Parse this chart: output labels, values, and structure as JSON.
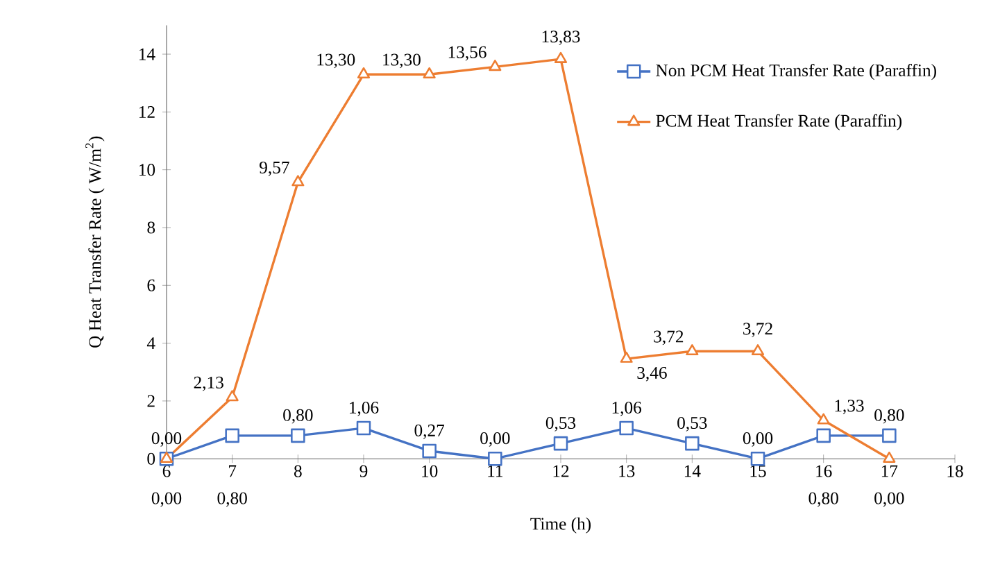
{
  "chart_data": {
    "type": "line",
    "xlabel": "Time (h)",
    "ylabel": "Q Heat Transfer Rate ( W/m$^{2}$)",
    "x": [
      6,
      7,
      8,
      9,
      10,
      11,
      12,
      13,
      14,
      15,
      16,
      17
    ],
    "xlim": [
      6,
      18
    ],
    "xticks": [
      6,
      7,
      8,
      9,
      10,
      11,
      12,
      13,
      14,
      15,
      16,
      17,
      18
    ],
    "ylim": [
      0,
      15
    ],
    "yticks": [
      0,
      2,
      4,
      6,
      8,
      10,
      12,
      14
    ],
    "legend": "top right",
    "grid": false,
    "line_style": "solid",
    "series": [
      {
        "name": "Non PCM Heat Transfer Rate (Paraffin)",
        "color": "#4472c4",
        "marker": "square",
        "values": [
          0.0,
          0.8,
          0.8,
          1.06,
          0.27,
          0.0,
          0.53,
          1.06,
          0.53,
          0.0,
          0.8,
          0.8
        ],
        "value_labels": [
          "0,00",
          "0,80",
          "0,80",
          "1,06",
          "0,27",
          "0,00",
          "0,53",
          "1,06",
          "0,53",
          "0,00",
          "0,80",
          "0,80"
        ]
      },
      {
        "name": "PCM Heat Transfer Rate (Paraffin)",
        "color": "#ed7d31",
        "marker": "triangle",
        "values": [
          0.0,
          2.13,
          9.57,
          13.3,
          13.3,
          13.56,
          13.83,
          3.46,
          3.72,
          3.72,
          1.33,
          0.0
        ],
        "value_labels": [
          "0,00",
          "2,13",
          "9,57",
          "13,30",
          "13,30",
          "13,56",
          "13,83",
          "3,46",
          "3,72",
          "3,72",
          "1,33",
          "0,00"
        ]
      }
    ]
  }
}
